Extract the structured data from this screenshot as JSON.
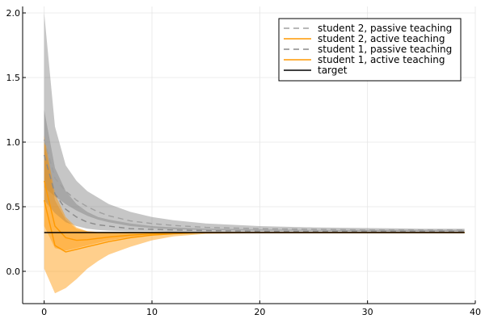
{
  "chart_data": {
    "type": "line",
    "title": "",
    "xlabel": "",
    "ylabel": "",
    "xlim": [
      -2,
      40
    ],
    "ylim": [
      -0.25,
      2.05
    ],
    "xticks": [
      0,
      10,
      20,
      30,
      40
    ],
    "xtick_labels": [
      "0",
      "10",
      "20",
      "30",
      "40"
    ],
    "yticks": [
      0.0,
      0.5,
      1.0,
      1.5,
      2.0
    ],
    "ytick_labels": [
      "0.0",
      "0.5",
      "1.0",
      "1.5",
      "2.0"
    ],
    "grid": true,
    "legend_position": "top-right",
    "target": 0.3,
    "series": [
      {
        "name": "student 2, passive teaching",
        "style": "dashed",
        "color": "#a0a0a0",
        "band_color": "#808080",
        "x": [
          0,
          1,
          2,
          3,
          4,
          5,
          6,
          8,
          10,
          12,
          15,
          20,
          25,
          30,
          35,
          39
        ],
        "mean": [
          1.02,
          0.72,
          0.62,
          0.55,
          0.5,
          0.46,
          0.43,
          0.39,
          0.37,
          0.355,
          0.34,
          0.33,
          0.325,
          0.32,
          0.32,
          0.32
        ],
        "lower": [
          0.65,
          0.58,
          0.52,
          0.47,
          0.43,
          0.4,
          0.38,
          0.35,
          0.335,
          0.325,
          0.32,
          0.315,
          0.315,
          0.31,
          0.31,
          0.31
        ],
        "upper": [
          2.0,
          1.12,
          0.82,
          0.7,
          0.62,
          0.57,
          0.52,
          0.46,
          0.42,
          0.395,
          0.37,
          0.35,
          0.34,
          0.335,
          0.33,
          0.33
        ]
      },
      {
        "name": "student 2, active teaching",
        "style": "solid",
        "color": "#ff9900",
        "band_color": "#ff9500",
        "x": [
          0,
          1,
          2,
          3,
          4,
          5,
          6,
          8,
          10,
          12,
          15,
          20,
          25,
          30,
          35,
          39
        ],
        "mean": [
          0.55,
          0.2,
          0.15,
          0.17,
          0.19,
          0.21,
          0.23,
          0.26,
          0.28,
          0.29,
          0.3,
          0.3,
          0.3,
          0.3,
          0.3,
          0.3
        ],
        "lower": [
          0.02,
          -0.17,
          -0.13,
          -0.06,
          0.02,
          0.08,
          0.13,
          0.19,
          0.24,
          0.27,
          0.29,
          0.295,
          0.295,
          0.295,
          0.295,
          0.295
        ],
        "upper": [
          1.0,
          0.55,
          0.4,
          0.33,
          0.31,
          0.305,
          0.305,
          0.305,
          0.305,
          0.305,
          0.305,
          0.305,
          0.305,
          0.305,
          0.305,
          0.305
        ]
      },
      {
        "name": "student 1, passive teaching",
        "style": "dashed",
        "color": "#8a8a8a",
        "band_color": "#808080",
        "x": [
          0,
          1,
          2,
          3,
          4,
          5,
          6,
          8,
          10,
          12,
          15,
          20,
          25,
          30,
          35,
          39
        ],
        "mean": [
          0.9,
          0.6,
          0.48,
          0.42,
          0.38,
          0.36,
          0.35,
          0.33,
          0.325,
          0.32,
          0.315,
          0.31,
          0.31,
          0.31,
          0.31,
          0.31
        ],
        "lower": [
          0.55,
          0.45,
          0.38,
          0.35,
          0.33,
          0.32,
          0.315,
          0.31,
          0.31,
          0.305,
          0.305,
          0.305,
          0.305,
          0.305,
          0.305,
          0.305
        ],
        "upper": [
          1.25,
          0.8,
          0.62,
          0.52,
          0.46,
          0.42,
          0.4,
          0.37,
          0.35,
          0.34,
          0.33,
          0.325,
          0.32,
          0.32,
          0.32,
          0.32
        ]
      },
      {
        "name": "student 1, active teaching",
        "style": "solid",
        "color": "#ff9900",
        "band_color": "#ff9500",
        "x": [
          0,
          1,
          2,
          3,
          4,
          5,
          6,
          8,
          10,
          12,
          15,
          20,
          25,
          30,
          35,
          39
        ],
        "mean": [
          0.7,
          0.35,
          0.26,
          0.24,
          0.245,
          0.255,
          0.265,
          0.28,
          0.29,
          0.295,
          0.3,
          0.3,
          0.3,
          0.3,
          0.3,
          0.3
        ],
        "lower": [
          0.35,
          0.18,
          0.16,
          0.18,
          0.2,
          0.22,
          0.24,
          0.265,
          0.28,
          0.29,
          0.295,
          0.298,
          0.298,
          0.298,
          0.298,
          0.298
        ],
        "upper": [
          1.05,
          0.6,
          0.42,
          0.34,
          0.31,
          0.305,
          0.305,
          0.305,
          0.305,
          0.305,
          0.305,
          0.305,
          0.305,
          0.305,
          0.305,
          0.305
        ]
      },
      {
        "name": "target",
        "style": "solid",
        "color": "#000000",
        "x": [
          0,
          39
        ],
        "mean": [
          0.3,
          0.3
        ]
      }
    ]
  }
}
